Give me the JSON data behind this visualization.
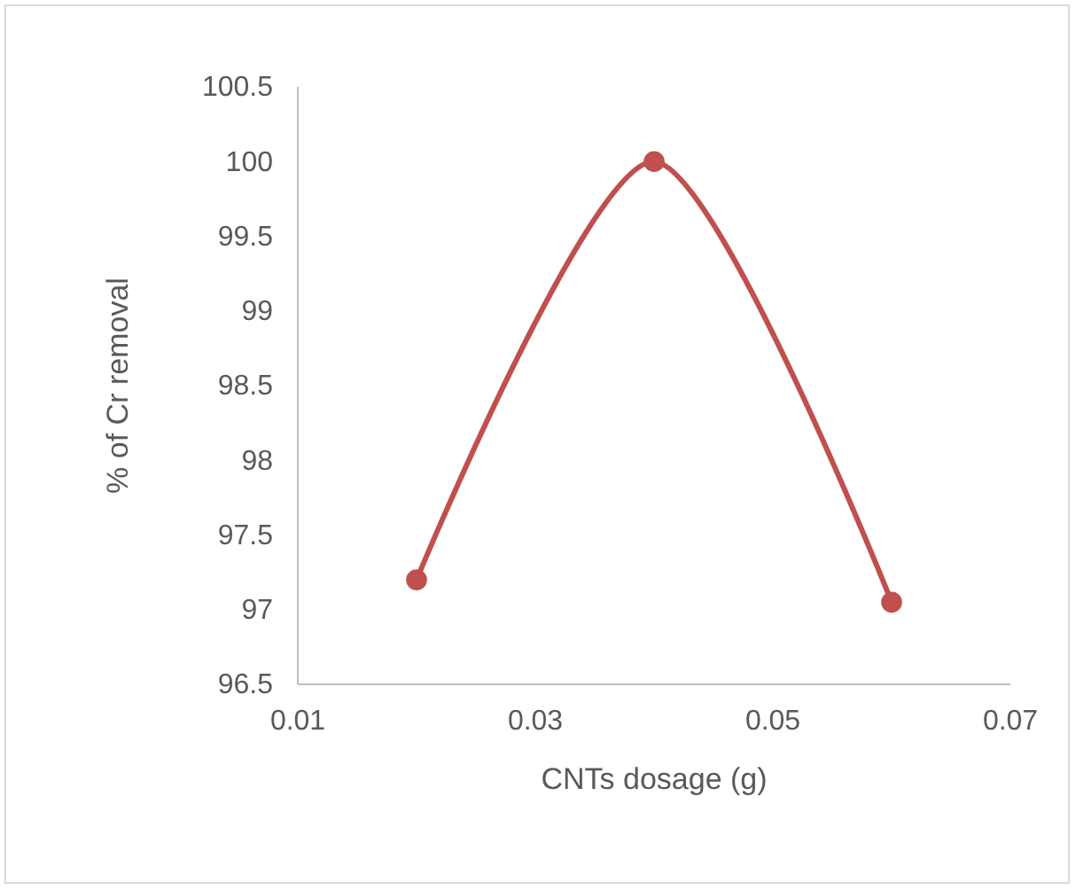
{
  "chart_data": {
    "type": "line",
    "xlabel": "CNTs dosage (g)",
    "ylabel": "% of Cr removal",
    "x": [
      0.02,
      0.04,
      0.06
    ],
    "series": [
      {
        "color": "#c0504d",
        "values": [
          97.2,
          100,
          97.05
        ]
      }
    ],
    "xlim": [
      0.01,
      0.07
    ],
    "xticks": [
      {
        "value": 0.01,
        "label": "0.01"
      },
      {
        "value": 0.03,
        "label": "0.03"
      },
      {
        "value": 0.05,
        "label": "0.05"
      },
      {
        "value": 0.07,
        "label": "0.07"
      }
    ],
    "ylim": [
      96.5,
      100.5
    ],
    "yticks": [
      96.5,
      97,
      97.5,
      98,
      98.5,
      99,
      99.5,
      100,
      100.5
    ],
    "grid": false,
    "marker": "circle",
    "line_style": "solid"
  }
}
